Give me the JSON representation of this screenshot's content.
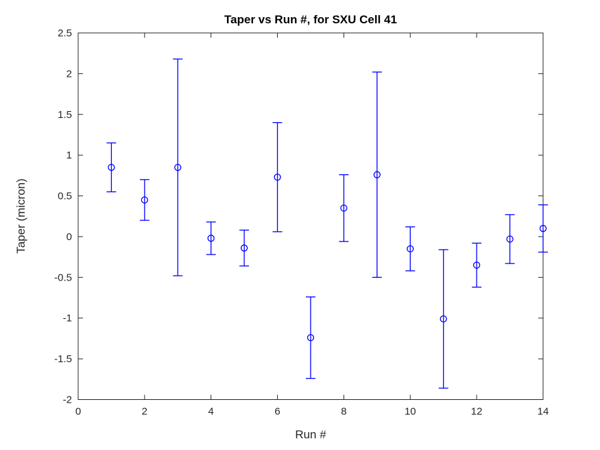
{
  "figure": {
    "background": "#ffffff"
  },
  "chart_data": {
    "type": "scatter",
    "subtype": "errorbar",
    "title": "Taper vs Run #, for SXU Cell 41",
    "xlabel": "Run #",
    "ylabel": "Taper (micron)",
    "xlim": [
      0,
      14
    ],
    "ylim": [
      -2,
      2.5
    ],
    "xticks": [
      0,
      2,
      4,
      6,
      8,
      10,
      12,
      14
    ],
    "yticks": [
      -2,
      -1.5,
      -1,
      -0.5,
      0,
      0.5,
      1,
      1.5,
      2,
      2.5
    ],
    "grid": false,
    "legend": null,
    "axis_color": "#262626",
    "series": [
      {
        "name": "taper-errorbar-series",
        "color": "#0000ff",
        "marker": "open-circle",
        "x": [
          1,
          2,
          3,
          4,
          5,
          6,
          7,
          8,
          9,
          10,
          11,
          12,
          13,
          14
        ],
        "y": [
          0.85,
          0.45,
          0.85,
          -0.02,
          -0.14,
          0.73,
          -1.24,
          0.35,
          0.76,
          -0.15,
          -1.01,
          -0.35,
          -0.03,
          0.1
        ],
        "err": [
          0.3,
          0.25,
          1.33,
          0.2,
          0.22,
          0.67,
          0.5,
          0.41,
          1.26,
          0.27,
          0.85,
          0.27,
          0.3,
          0.29
        ]
      }
    ]
  }
}
